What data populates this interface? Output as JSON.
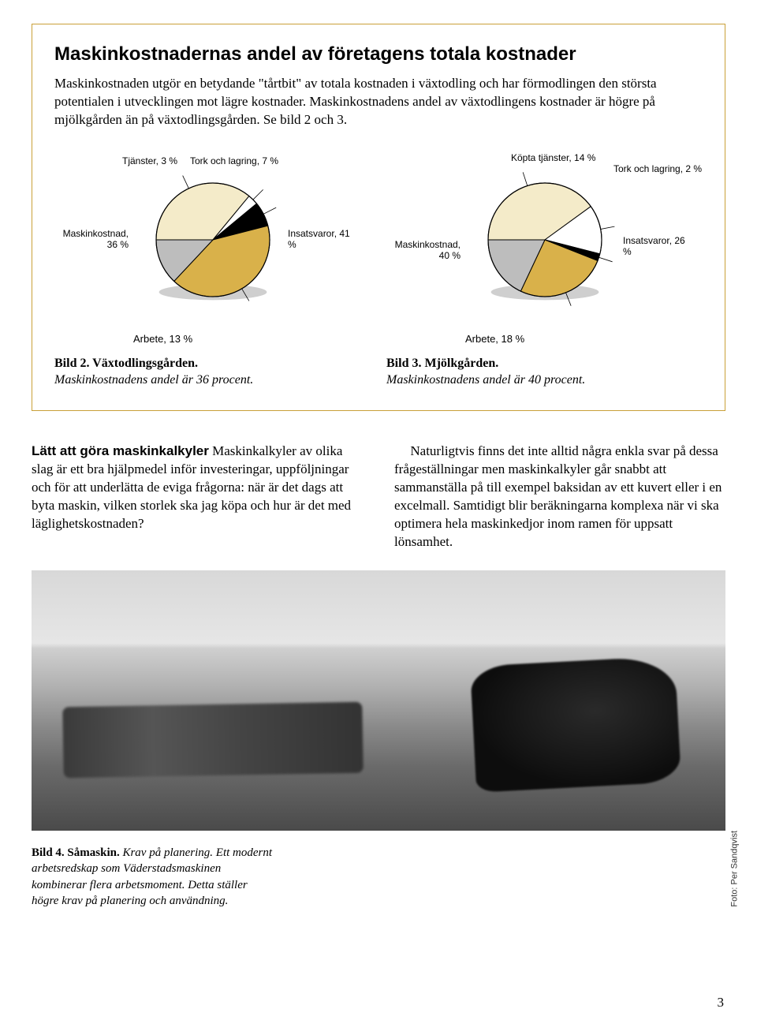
{
  "box": {
    "heading": "Maskinkostnadernas andel av företagens totala kostnader",
    "intro": "Maskinkostnaden utgör en betydande \"tårtbit\" av totala kostnaden i växtodling och har förmodlingen den största potentialen i utvecklingen mot lägre kostnader. Maskinkostnadens andel av växtodlingens kostnader är högre på mjölkgården än på växtodlingsgården. Se bild 2 och 3."
  },
  "colors": {
    "cream": "#f4ebc9",
    "gold": "#d9b14a",
    "black": "#000000",
    "grey": "#bdbdbd",
    "stroke": "#000000",
    "shadow": "#888888"
  },
  "pie1": {
    "type": "pie",
    "radius": 72,
    "slices": [
      {
        "label": "Maskinkostnad, 36 %",
        "value": 36,
        "color": "#f4ebc9"
      },
      {
        "label": "Tjänster, 3 %",
        "value": 3,
        "color": "#ffffff"
      },
      {
        "label": "Tork och lagring, 7 %",
        "value": 7,
        "color": "#000000"
      },
      {
        "label": "Insatsvaror, 41 %",
        "value": 41,
        "color": "#d9b14a"
      },
      {
        "label": "Arbete, 13 %",
        "value": 13,
        "color": "#bdbdbd"
      }
    ],
    "below_label": "Arbete, 13 %",
    "caption_bold": "Bild 2. Växtodlingsgården.",
    "caption_italic": "Maskinkostnadens andel är 36 procent."
  },
  "pie2": {
    "type": "pie",
    "radius": 72,
    "slices": [
      {
        "label": "Maskinkostnad, 40 %",
        "value": 40,
        "color": "#f4ebc9"
      },
      {
        "label": "Köpta tjänster, 14 %",
        "value": 14,
        "color": "#ffffff"
      },
      {
        "label": "Tork och lagring, 2 %",
        "value": 2,
        "color": "#000000"
      },
      {
        "label": "Insatsvaror, 26 %",
        "value": 26,
        "color": "#d9b14a"
      },
      {
        "label": "Arbete, 18 %",
        "value": 18,
        "color": "#bdbdbd"
      }
    ],
    "below_label": "Arbete, 18 %",
    "caption_bold": "Bild 3. Mjölkgården.",
    "caption_italic": "Maskinkostnadens andel är 40 procent."
  },
  "body": {
    "left_subhead": "Lätt att göra maskinkalkyler",
    "left_text": "Maskinkalkyler av olika slag är ett bra hjälpmedel inför investeringar, uppföljningar och för att underlätta de eviga frågorna: när är det dags att byta maskin, vilken storlek ska jag köpa och hur är det med läglighetskostnaden?",
    "right_text": "Naturligtvis finns det inte alltid några enkla svar på dessa frågeställningar men maskinkalkyler går snabbt att sammanställa på till exempel baksidan av ett kuvert eller i en excelmall. Samtidigt blir beräkningarna komplexa när vi ska optimera hela maskinkedjor inom ramen för uppsatt lönsamhet."
  },
  "photo": {
    "credit": "Foto: Per Sandqvist",
    "caption_bold": "Bild 4. Såmaskin.",
    "caption_italic": "Krav på planering. Ett modernt arbetsredskap som Väderstadsmaskinen kombinerar flera arbetsmoment. Detta ställer högre krav på planering och användning."
  },
  "page_number": "3"
}
